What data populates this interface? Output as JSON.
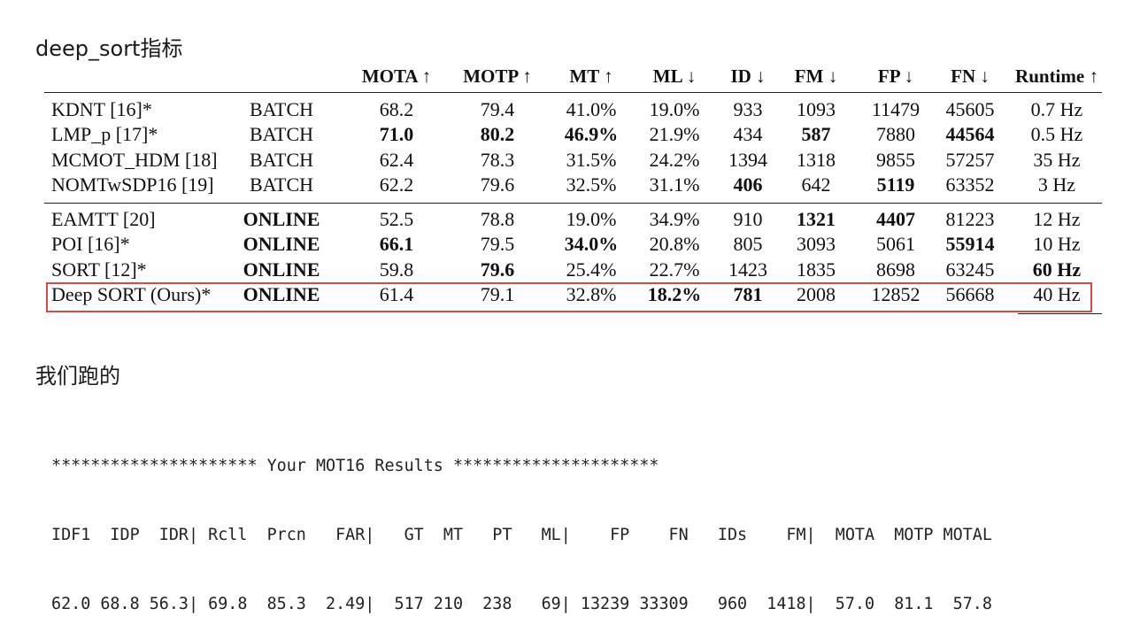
{
  "headings": {
    "top": "deep_sort指标",
    "bottom": "我们跑的"
  },
  "table": {
    "columns": [
      "",
      "",
      "MOTA ↑",
      "MOTP ↑",
      "MT ↑",
      "ML ↓",
      "ID ↓",
      "FM ↓",
      "FP ↓",
      "FN ↓",
      "Runtime ↑"
    ],
    "rows": [
      {
        "cells": [
          "KDNT [16]*",
          "BATCH",
          "68.2",
          "79.4",
          "41.0%",
          "19.0%",
          "933",
          "1093",
          "11479",
          "45605",
          "0.7 Hz"
        ],
        "bold": []
      },
      {
        "cells": [
          "LMP_p [17]*",
          "BATCH",
          "71.0",
          "80.2",
          "46.9%",
          "21.9%",
          "434",
          "587",
          "7880",
          "44564",
          "0.5 Hz"
        ],
        "bold": [
          2,
          3,
          4,
          7,
          9
        ]
      },
      {
        "cells": [
          "MCMOT_HDM [18]",
          "BATCH",
          "62.4",
          "78.3",
          "31.5%",
          "24.2%",
          "1394",
          "1318",
          "9855",
          "57257",
          "35 Hz"
        ],
        "bold": []
      },
      {
        "cells": [
          "NOMTwSDP16 [19]",
          "BATCH",
          "62.2",
          "79.6",
          "32.5%",
          "31.1%",
          "406",
          "642",
          "5119",
          "63352",
          "3 Hz"
        ],
        "bold": [
          6,
          8
        ]
      },
      {
        "cells": [
          "EAMTT [20]",
          "ONLINE",
          "52.5",
          "78.8",
          "19.0%",
          "34.9%",
          "910",
          "1321",
          "4407",
          "81223",
          "12 Hz"
        ],
        "bold": [
          1,
          7,
          8
        ]
      },
      {
        "cells": [
          "POI [16]*",
          "ONLINE",
          "66.1",
          "79.5",
          "34.0%",
          "20.8%",
          "805",
          "3093",
          "5061",
          "55914",
          "10 Hz"
        ],
        "bold": [
          1,
          2,
          4,
          9
        ]
      },
      {
        "cells": [
          "SORT [12]*",
          "ONLINE",
          "59.8",
          "79.6",
          "25.4%",
          "22.7%",
          "1423",
          "1835",
          "8698",
          "63245",
          "60 Hz"
        ],
        "bold": [
          1,
          3,
          10
        ]
      },
      {
        "cells": [
          "Deep SORT (Ours)*",
          "ONLINE",
          "61.4",
          "79.1",
          "32.8%",
          "18.2%",
          "781",
          "2008",
          "12852",
          "56668",
          "40 Hz"
        ],
        "bold": [
          1,
          5,
          6
        ]
      }
    ],
    "highlighted_row": "Deep SORT (Ours)*",
    "highlight_color": "#e04545"
  },
  "results": {
    "banner": "********************* Your MOT16 Results *********************",
    "header": "IDF1  IDP  IDR| Rcll  Prcn   FAR|   GT  MT   PT   ML|    FP    FN   IDs    FM|  MOTA  MOTP MOTAL",
    "values": "62.0 68.8 56.3| 69.8  85.3  2.49|  517 210  238   69| 13239 33309   960  1418|  57.0  81.1  57.8"
  }
}
